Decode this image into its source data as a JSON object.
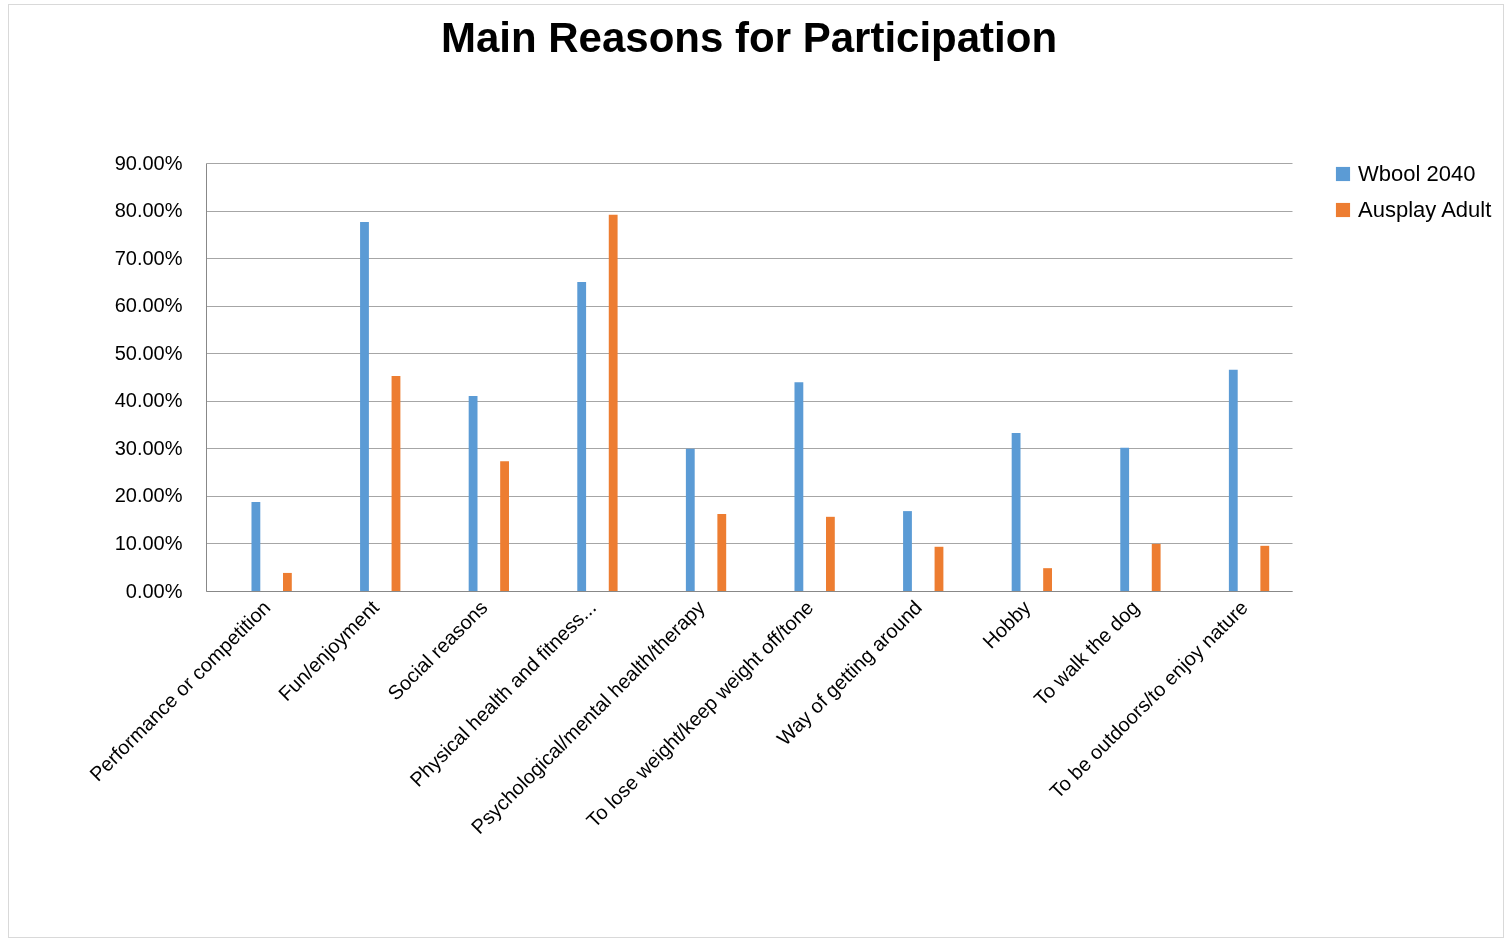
{
  "chart_data": {
    "type": "bar",
    "title": "Main Reasons for Participation",
    "categories": [
      "Performance or competition",
      "Fun/enjoyment",
      "Social reasons",
      "Physical health and fitness...",
      "Psychological/mental health/therapy",
      "To lose weight/keep weight off/tone",
      "Way of getting around",
      "Hobby",
      "To walk the dog",
      "To be outdoors/to enjoy nature"
    ],
    "series": [
      {
        "name": "Wbool 2040",
        "color": "#5b9bd5",
        "values": [
          18.7,
          77.6,
          41.0,
          65.0,
          29.9,
          43.9,
          16.8,
          33.2,
          30.1,
          46.5
        ]
      },
      {
        "name": "Ausplay Adult",
        "color": "#ed7d31",
        "values": [
          3.8,
          45.2,
          27.3,
          79.1,
          16.2,
          15.6,
          9.3,
          4.8,
          9.9,
          9.5
        ]
      }
    ],
    "ylim": [
      0,
      90
    ],
    "yticks": [
      {
        "value": 0,
        "label": "0.00%"
      },
      {
        "value": 10,
        "label": "10.00%"
      },
      {
        "value": 20,
        "label": "20.00%"
      },
      {
        "value": 30,
        "label": "30.00%"
      },
      {
        "value": 40,
        "label": "40.00%"
      },
      {
        "value": 50,
        "label": "50.00%"
      },
      {
        "value": 60,
        "label": "60.00%"
      },
      {
        "value": 70,
        "label": "70.00%"
      },
      {
        "value": 80,
        "label": "80.00%"
      },
      {
        "value": 90,
        "label": "90.00%"
      }
    ],
    "grid": "y",
    "legend": "right"
  }
}
